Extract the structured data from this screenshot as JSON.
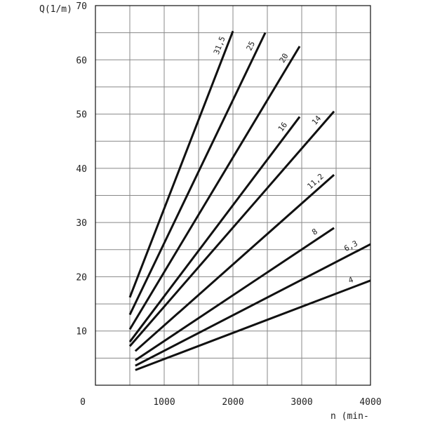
{
  "chart_data": {
    "type": "line",
    "title": "",
    "xlabel": "n (min-",
    "ylabel": "Q(1/m)",
    "xlim": [
      0,
      4000
    ],
    "ylim": [
      0,
      70
    ],
    "x_ticks": [
      0,
      1000,
      2000,
      3000,
      4000
    ],
    "x_tick_labels": [
      "0",
      "1000",
      "2000",
      "3000",
      "4000"
    ],
    "y_ticks": [
      10,
      20,
      30,
      40,
      50,
      60,
      70
    ],
    "y_tick_labels": [
      "10",
      "20",
      "30",
      "40",
      "50",
      "60",
      "70"
    ],
    "x_grid_step": 500,
    "y_grid_step": 5,
    "grid": true,
    "legend": "none",
    "line_color": "#111111",
    "grid_color": "#888888",
    "series": [
      {
        "name": "31,5",
        "points": [
          [
            500,
            16.2
          ],
          [
            2000,
            65.3
          ]
        ]
      },
      {
        "name": "25",
        "points": [
          [
            500,
            13.0
          ],
          [
            2470,
            65.0
          ]
        ]
      },
      {
        "name": "20",
        "points": [
          [
            500,
            10.3
          ],
          [
            2970,
            62.5
          ]
        ]
      },
      {
        "name": "16",
        "points": [
          [
            500,
            8.0
          ],
          [
            2970,
            49.5
          ]
        ]
      },
      {
        "name": "14",
        "points": [
          [
            500,
            7.2
          ],
          [
            3470,
            50.5
          ]
        ]
      },
      {
        "name": "11,2",
        "points": [
          [
            580,
            6.3
          ],
          [
            3470,
            38.8
          ]
        ]
      },
      {
        "name": "8",
        "points": [
          [
            580,
            4.6
          ],
          [
            3470,
            29.0
          ]
        ]
      },
      {
        "name": "6,3",
        "points": [
          [
            580,
            3.6
          ],
          [
            4000,
            26.0
          ]
        ]
      },
      {
        "name": "4",
        "points": [
          [
            580,
            2.8
          ],
          [
            4000,
            19.3
          ]
        ]
      }
    ]
  }
}
